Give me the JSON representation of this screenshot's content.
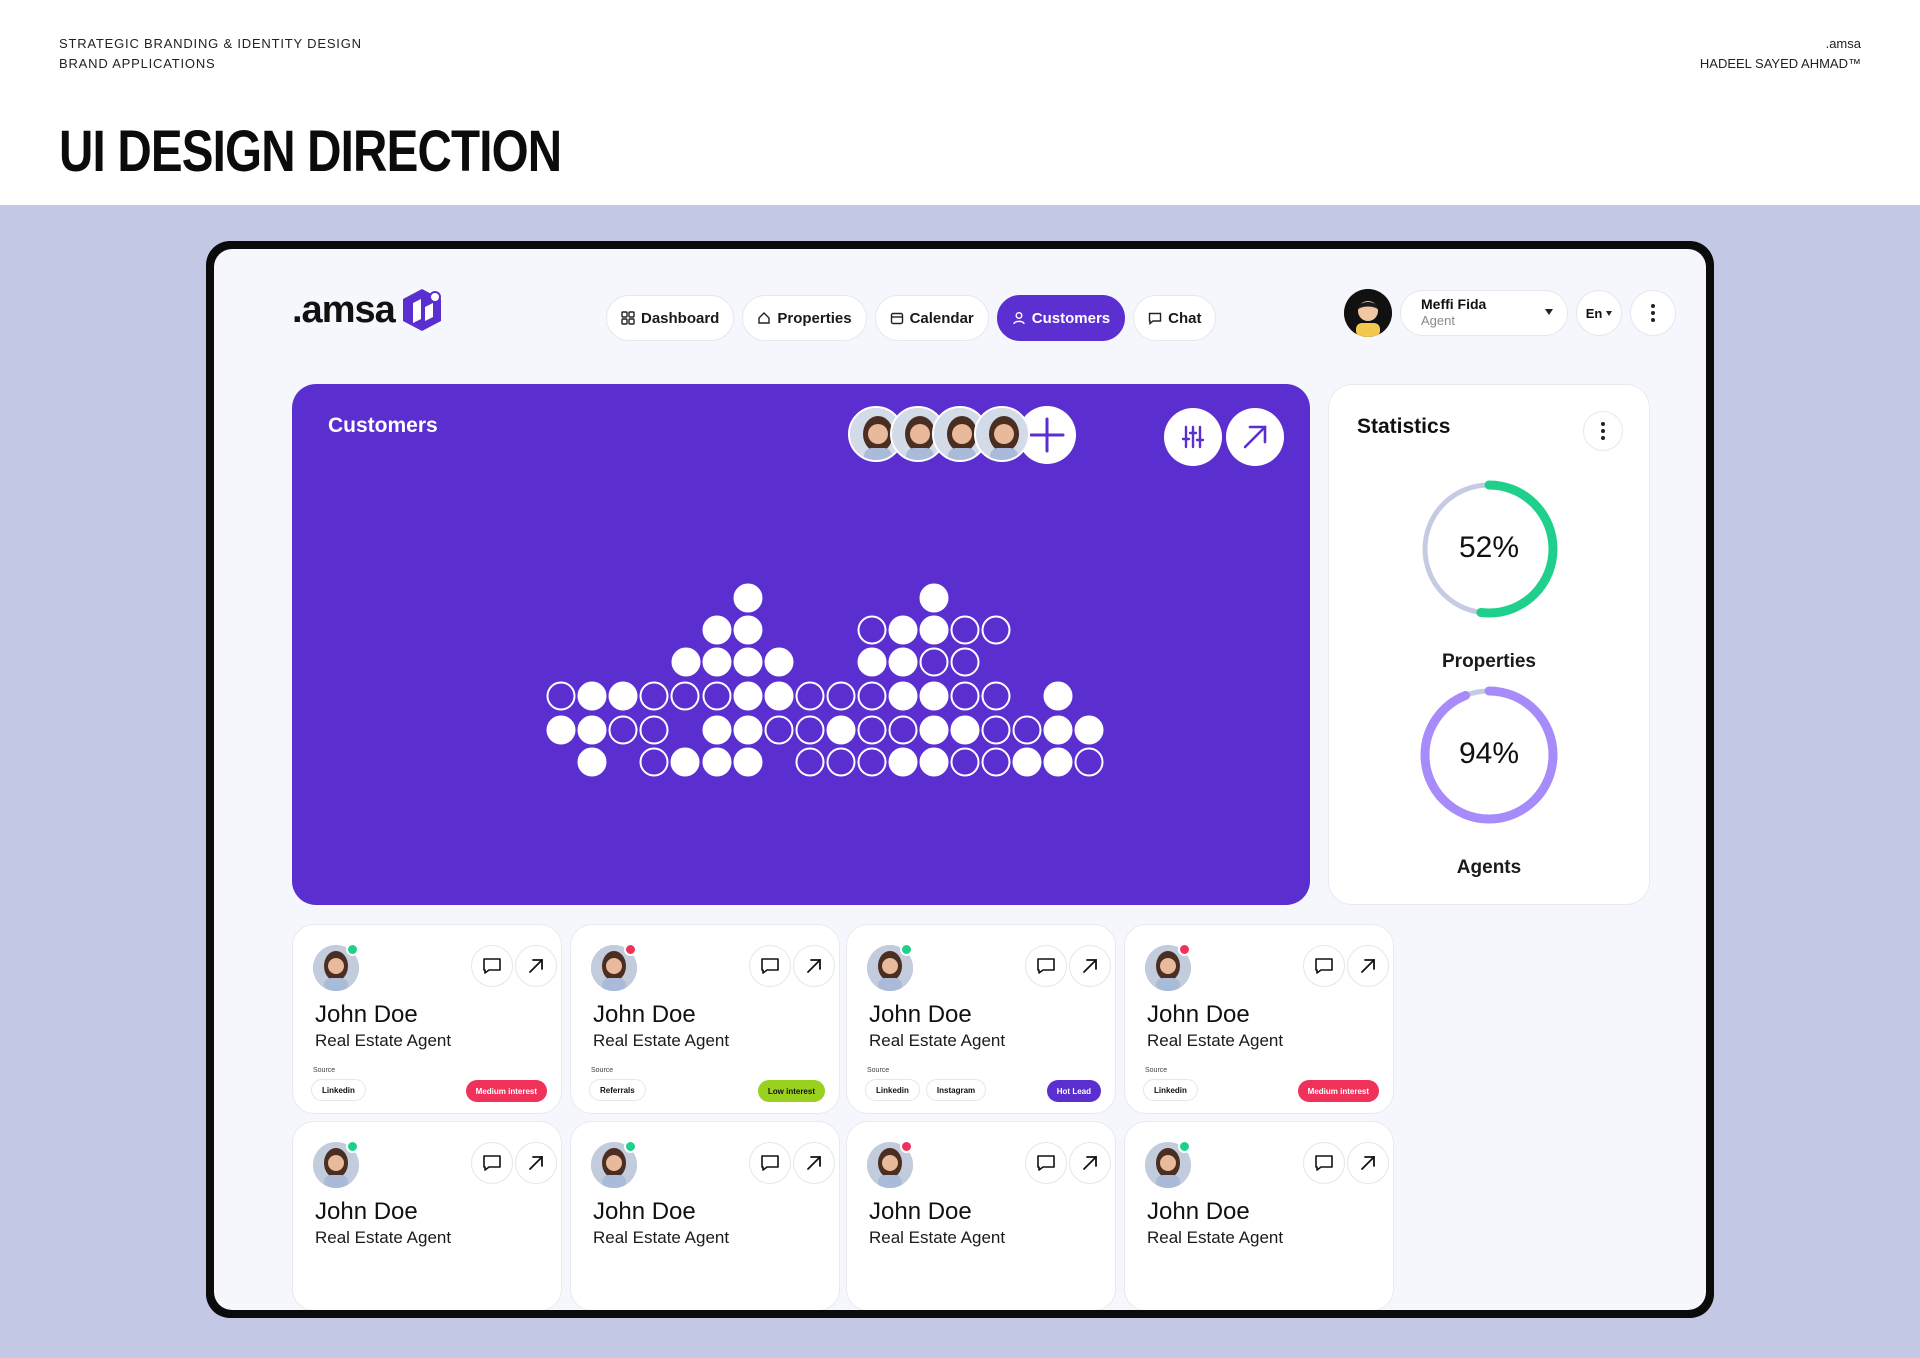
{
  "presentation": {
    "top_left_line1": "STRATEGIC BRANDING & IDENTITY DESIGN",
    "top_left_line2": "BRAND APPLICATIONS",
    "top_right_line1": ".amsa",
    "top_right_line2": "HADEEL SAYED AHMAD™",
    "title": "UI DESIGN DIRECTION"
  },
  "app": {
    "logo_text": ".amsa",
    "nav": [
      {
        "label": "Dashboard",
        "icon": "grid-icon"
      },
      {
        "label": "Properties",
        "icon": "home-icon"
      },
      {
        "label": "Calendar",
        "icon": "calendar-icon"
      },
      {
        "label": "Customers",
        "icon": "user-icon",
        "active": true
      },
      {
        "label": "Chat",
        "icon": "chat-icon"
      }
    ],
    "user": {
      "name": "Meffi Fida",
      "role": "Agent"
    },
    "language": "En"
  },
  "customers_panel": {
    "title": "Customers",
    "accent_color": "#5b2fcf"
  },
  "statistics": {
    "title": "Statistics",
    "properties": {
      "label": "Properties",
      "value_text": "52%",
      "value": 52,
      "color": "#1fcf8c"
    },
    "agents": {
      "label": "Agents",
      "value_text": "94%",
      "value": 94,
      "color": "#a78bfa"
    }
  },
  "cards": [
    {
      "name": "John Doe",
      "role": "Real Estate Agent",
      "status": "green",
      "source_label": "Source",
      "sources": [
        "Linkedin"
      ],
      "interest": "Medium interest",
      "interest_color": "#f0325a",
      "interest_text_color": "#ffffff"
    },
    {
      "name": "John Doe",
      "role": "Real Estate Agent",
      "status": "red",
      "source_label": "Source",
      "sources": [
        "Referrals"
      ],
      "interest": "Low interest",
      "interest_color": "#9ad11f",
      "interest_text_color": "#111111"
    },
    {
      "name": "John Doe",
      "role": "Real Estate Agent",
      "status": "green",
      "source_label": "Source",
      "sources": [
        "Linkedin",
        "Instagram"
      ],
      "interest": "Hot Lead",
      "interest_color": "#5b2fcf",
      "interest_text_color": "#ffffff"
    },
    {
      "name": "John Doe",
      "role": "Real Estate Agent",
      "status": "red",
      "source_label": "Source",
      "sources": [
        "Linkedin"
      ],
      "interest": "Medium interest",
      "interest_color": "#f0325a",
      "interest_text_color": "#ffffff"
    },
    {
      "name": "John Doe",
      "role": "Real Estate Agent",
      "status": "green"
    },
    {
      "name": "John Doe",
      "role": "Real Estate Agent",
      "status": "green"
    },
    {
      "name": "John Doe",
      "role": "Real Estate Agent",
      "status": "red"
    },
    {
      "name": "John Doe",
      "role": "Real Estate Agent",
      "status": "green"
    }
  ]
}
